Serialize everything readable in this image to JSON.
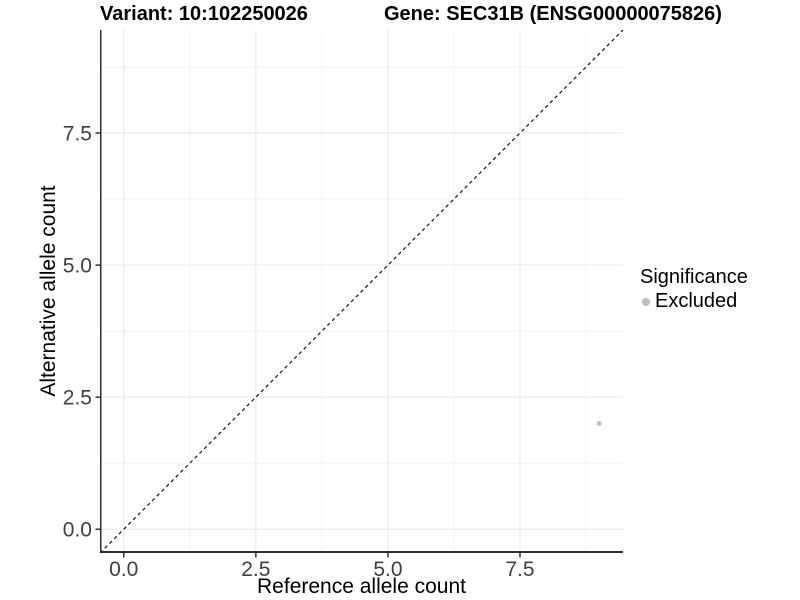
{
  "chart_data": {
    "type": "scatter",
    "title_left": "Variant: 10:102250026",
    "title_right": "Gene: SEC31B (ENSG00000075826)",
    "xlabel": "Reference allele count",
    "ylabel": "Alternative allele count",
    "xlim": [
      -0.45,
      9.45
    ],
    "ylim": [
      -0.45,
      9.45
    ],
    "xtick_values": [
      0,
      2.5,
      5,
      7.5
    ],
    "xtick_labels": [
      "0.0",
      "2.5",
      "5.0",
      "7.5"
    ],
    "ytick_values": [
      0,
      2.5,
      5,
      7.5
    ],
    "ytick_labels": [
      "0.0",
      "2.5",
      "5.0",
      "7.5"
    ],
    "minor_xticks": [
      1.25,
      3.75,
      6.25,
      8.75
    ],
    "minor_yticks": [
      1.25,
      3.75,
      6.25,
      8.75
    ],
    "grid": "major+minor",
    "identity_line": {
      "style": "dashed",
      "color": "#111111",
      "equation": "y = x"
    },
    "series": [
      {
        "name": "Excluded",
        "color": "#bdbdbd",
        "points": [
          {
            "x": 9,
            "y": 2
          }
        ]
      }
    ],
    "legend": {
      "title": "Significance",
      "position": "right",
      "entries": [
        {
          "label": "Excluded",
          "color": "#bdbdbd"
        }
      ]
    }
  },
  "colors": {
    "background": "#ffffff",
    "axis_line": "#2e2e2e",
    "tick_mark": "#333333",
    "tick_label": "#404040",
    "grid_major": "#ebebeb",
    "grid_minor": "#f3f3f3"
  }
}
